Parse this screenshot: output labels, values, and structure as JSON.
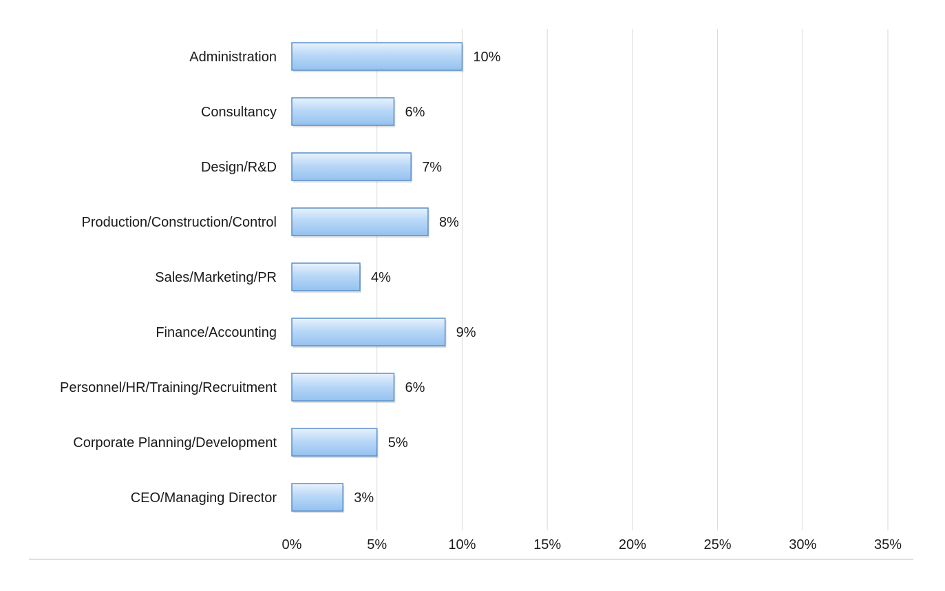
{
  "chart_data": {
    "type": "bar",
    "orientation": "horizontal",
    "categories": [
      "Administration",
      "Consultancy",
      "Design/R&D",
      "Production/Construction/Control",
      "Sales/Marketing/PR",
      "Finance/Accounting",
      "Personnel/HR/Training/Recruitment",
      "Corporate Planning/Development",
      "CEO/Managing Director"
    ],
    "values": [
      10,
      6,
      7,
      8,
      4,
      9,
      6,
      5,
      3
    ],
    "data_labels": [
      "10%",
      "6%",
      "7%",
      "8%",
      "4%",
      "9%",
      "6%",
      "5%",
      "3%"
    ],
    "xlim": [
      0,
      35
    ],
    "x_ticks": [
      0,
      5,
      10,
      15,
      20,
      25,
      30,
      35
    ],
    "x_tick_labels": [
      "0%",
      "5%",
      "10%",
      "15%",
      "20%",
      "25%",
      "30%",
      "35%"
    ],
    "title": "",
    "xlabel": "",
    "ylabel": "",
    "grid": true,
    "legend": "none",
    "colors": {
      "bar_light": "#e8f2fd",
      "bar_mid": "#b9d8f7",
      "bar_dark": "#95c1ef",
      "bar_border": "#5a8fc7",
      "grid": "#d9d9d9",
      "axis": "#bfbfbf"
    }
  }
}
